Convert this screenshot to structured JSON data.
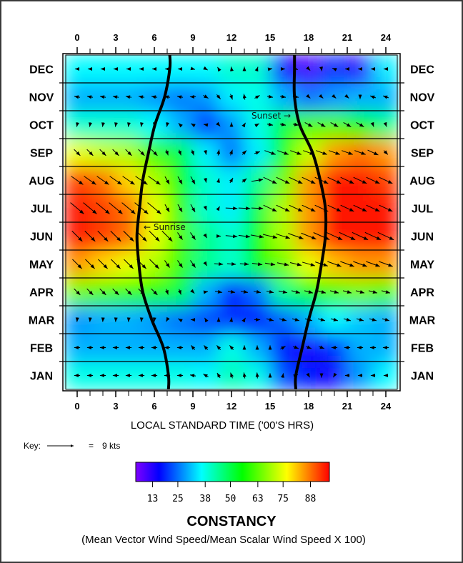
{
  "chart_data": {
    "type": "heatmap",
    "title": "",
    "xlabel": "LOCAL STANDARD TIME ('00'S HRS)",
    "x_ticks": [
      "0",
      "3",
      "6",
      "9",
      "12",
      "15",
      "18",
      "21",
      "24"
    ],
    "x_range": [
      -1,
      25
    ],
    "months": [
      "JAN",
      "FEB",
      "MAR",
      "APR",
      "MAY",
      "JUN",
      "JUL",
      "AUG",
      "SEP",
      "OCT",
      "NOV",
      "DEC"
    ],
    "grid_hours": [
      0,
      2,
      4,
      6,
      8,
      10,
      12,
      14,
      16,
      18,
      20,
      22,
      24
    ],
    "constancy": [
      [
        38,
        38,
        38,
        38,
        38,
        36,
        42,
        38,
        22,
        18,
        14,
        28,
        36
      ],
      [
        30,
        30,
        30,
        30,
        30,
        30,
        38,
        30,
        18,
        14,
        20,
        30,
        30
      ],
      [
        28,
        30,
        30,
        28,
        25,
        22,
        20,
        18,
        24,
        30,
        36,
        32,
        30
      ],
      [
        65,
        62,
        60,
        58,
        50,
        30,
        18,
        25,
        45,
        55,
        62,
        65,
        62
      ],
      [
        85,
        80,
        75,
        70,
        60,
        45,
        40,
        55,
        65,
        75,
        82,
        85,
        85
      ],
      [
        95,
        92,
        88,
        75,
        62,
        45,
        40,
        55,
        70,
        85,
        95,
        95,
        95
      ],
      [
        95,
        92,
        88,
        75,
        60,
        40,
        35,
        50,
        70,
        85,
        95,
        95,
        95
      ],
      [
        92,
        88,
        80,
        70,
        55,
        40,
        35,
        45,
        65,
        85,
        95,
        95,
        92
      ],
      [
        75,
        72,
        70,
        60,
        50,
        35,
        25,
        35,
        55,
        72,
        85,
        88,
        85
      ],
      [
        40,
        40,
        40,
        36,
        30,
        20,
        28,
        38,
        50,
        62,
        62,
        55,
        45
      ],
      [
        30,
        30,
        30,
        28,
        26,
        28,
        35,
        38,
        30,
        25,
        28,
        30,
        30
      ],
      [
        36,
        36,
        36,
        36,
        36,
        36,
        40,
        40,
        15,
        10,
        20,
        12,
        35
      ]
    ],
    "wind_hours": [
      0,
      1,
      2,
      3,
      4,
      5,
      6,
      7,
      8,
      9,
      10,
      11,
      12,
      13,
      14,
      15,
      16,
      17,
      18,
      19,
      20,
      21,
      22,
      23,
      24
    ],
    "wind_direction_deg": [
      [
        180,
        180,
        180,
        180,
        180,
        180,
        180,
        180,
        180,
        170,
        150,
        120,
        110,
        100,
        95,
        90,
        80,
        20,
        -60,
        -90,
        -120,
        180,
        180,
        180,
        180
      ],
      [
        180,
        180,
        180,
        180,
        180,
        180,
        180,
        180,
        180,
        130,
        130,
        130,
        130,
        90,
        90,
        90,
        30,
        -20,
        -20,
        -20,
        180,
        180,
        180,
        180,
        180
      ],
      [
        -95,
        -95,
        -95,
        -95,
        -95,
        -95,
        -95,
        -120,
        150,
        180,
        120,
        90,
        80,
        60,
        0,
        -15,
        -15,
        -15,
        -15,
        -15,
        -15,
        -15,
        -15,
        -15,
        -15
      ],
      [
        -45,
        -45,
        -45,
        -45,
        -45,
        -45,
        -45,
        -70,
        -70,
        -45,
        10,
        -10,
        -10,
        -10,
        -12,
        -12,
        -12,
        -15,
        -15,
        -15,
        -15,
        -15,
        -15,
        -15,
        -15
      ],
      [
        -45,
        -45,
        -45,
        -45,
        -45,
        -45,
        -45,
        -55,
        -55,
        -55,
        -60,
        -5,
        -5,
        -5,
        -8,
        -10,
        -12,
        -14,
        -16,
        -18,
        -20,
        -20,
        -20,
        -20,
        -20
      ],
      [
        -45,
        -45,
        -45,
        -45,
        -45,
        -45,
        -45,
        -45,
        -55,
        -55,
        -60,
        0,
        -5,
        -8,
        -10,
        -14,
        -18,
        -20,
        -22,
        -24,
        -25,
        -25,
        -25,
        -25,
        -25
      ],
      [
        -40,
        -40,
        -40,
        -40,
        -40,
        -40,
        -40,
        -60,
        -60,
        -60,
        -70,
        60,
        -3,
        -3,
        -3,
        -25,
        -25,
        -25,
        -25,
        -25,
        -25,
        -25,
        -25,
        -25,
        -25
      ],
      [
        -35,
        -35,
        -35,
        -35,
        -35,
        -35,
        -35,
        -60,
        -60,
        -60,
        -80,
        80,
        60,
        40,
        10,
        -25,
        -25,
        -25,
        -25,
        -25,
        -25,
        -25,
        -25,
        -25,
        -25
      ],
      [
        -45,
        -45,
        -45,
        -45,
        -45,
        -45,
        -45,
        -70,
        -70,
        -70,
        -80,
        80,
        70,
        45,
        20,
        -20,
        -20,
        -20,
        -20,
        -20,
        -20,
        -20,
        -20,
        -25,
        -45
      ],
      [
        -100,
        -100,
        -100,
        -100,
        -100,
        -100,
        -100,
        -100,
        135,
        150,
        170,
        -45,
        90,
        60,
        30,
        -10,
        -10,
        -10,
        -30,
        -30,
        -30,
        -30,
        -30,
        -70,
        -70
      ],
      [
        170,
        170,
        170,
        170,
        170,
        170,
        170,
        170,
        170,
        180,
        -30,
        -50,
        -70,
        100,
        30,
        -10,
        -10,
        -10,
        -40,
        -40,
        -40,
        -40,
        -90,
        160,
        160
      ],
      [
        180,
        180,
        180,
        180,
        180,
        180,
        180,
        180,
        180,
        -15,
        -30,
        120,
        100,
        90,
        70,
        10,
        0,
        -20,
        -45,
        -80,
        160,
        180,
        180,
        180,
        180
      ]
    ],
    "wind_speed_kts": [
      [
        2,
        2,
        2,
        2,
        2,
        2,
        2,
        2,
        2,
        2,
        2,
        2,
        2,
        2,
        2,
        1.5,
        1.5,
        1.5,
        1.5,
        1.5,
        1.5,
        1.5,
        1.5,
        1.5,
        1.5
      ],
      [
        2,
        2,
        2,
        2,
        2,
        2,
        2,
        2,
        2,
        2,
        2,
        2,
        2,
        1.5,
        1.5,
        1.5,
        2,
        2,
        2,
        2,
        2,
        2,
        2,
        2,
        2
      ],
      [
        1.5,
        1.5,
        1.5,
        1.5,
        1.5,
        1.5,
        1.5,
        1.5,
        1.5,
        1.5,
        1.5,
        1.5,
        1.5,
        1.5,
        2,
        2.5,
        2.5,
        2.5,
        2.5,
        2.5,
        2.5,
        2.5,
        2.5,
        2.5,
        2.5
      ],
      [
        3,
        3,
        3,
        3,
        3,
        3,
        3,
        2,
        2,
        1.5,
        1.5,
        2.5,
        2.5,
        2.5,
        2.5,
        2.5,
        3,
        3,
        3,
        3,
        3,
        3,
        3,
        3,
        3
      ],
      [
        4.5,
        4.5,
        4.5,
        4.5,
        4.5,
        4.5,
        4.5,
        3,
        3,
        3,
        1.5,
        3,
        3,
        3,
        3.5,
        3.5,
        4,
        4,
        4.5,
        4.5,
        5,
        5,
        5,
        5,
        5
      ],
      [
        5,
        5,
        5,
        5,
        5,
        5,
        5,
        5,
        3,
        3,
        1.5,
        1.5,
        4,
        4,
        4.5,
        5,
        5,
        5.5,
        5.5,
        6,
        6,
        6,
        6,
        6,
        6
      ],
      [
        6,
        6,
        6,
        6,
        6,
        6,
        6,
        3,
        3,
        3,
        1.5,
        1.5,
        4,
        4,
        4,
        5,
        5,
        5,
        5,
        5,
        5,
        5,
        5,
        5,
        5
      ],
      [
        5,
        5,
        5,
        5,
        5,
        5,
        5,
        3,
        3,
        3,
        1.5,
        1.5,
        2,
        2,
        4,
        5,
        5,
        5,
        5,
        5,
        5,
        5,
        5,
        5,
        5
      ],
      [
        3,
        3,
        3,
        3,
        3,
        3,
        3,
        2,
        2,
        2,
        1.5,
        2,
        2,
        2,
        2,
        4,
        4,
        4,
        4,
        4,
        4,
        4,
        4,
        4,
        2
      ],
      [
        1.5,
        1.5,
        1.5,
        1.5,
        1.5,
        1.5,
        1.5,
        1.5,
        1.5,
        1.5,
        1.5,
        1.5,
        1.5,
        1.5,
        1.5,
        2,
        2,
        2,
        3,
        3,
        3,
        3,
        3,
        1.5,
        1.5
      ],
      [
        2,
        2,
        2,
        2,
        2,
        2,
        2,
        2,
        2,
        2,
        2,
        2,
        2,
        2,
        2,
        2,
        2,
        2,
        1.5,
        1.5,
        1.5,
        1.5,
        1.5,
        2,
        2
      ],
      [
        1.5,
        1.5,
        1.5,
        1.5,
        1.5,
        1.5,
        1.5,
        1.5,
        1.5,
        1.5,
        1.5,
        1.5,
        1.5,
        1.5,
        1.5,
        1.5,
        1.5,
        1.5,
        1.5,
        1.5,
        1.5,
        1.5,
        1.5,
        1.5,
        1.5
      ]
    ],
    "sunrise_hour": [
      7.1,
      6.7,
      5.8,
      5.1,
      4.8,
      4.65,
      4.85,
      5.1,
      5.55,
      6.05,
      6.8,
      7.2
    ],
    "sunset_hour": [
      17.0,
      17.5,
      18.0,
      18.6,
      19.0,
      19.3,
      19.3,
      18.9,
      18.3,
      17.3,
      16.9,
      16.9
    ],
    "annotations": {
      "sunset": "Sunset →",
      "sunrise": "← Sunrise"
    },
    "key": {
      "label": "Key:",
      "equals": "=",
      "value": "9 kts",
      "kts": 9
    },
    "colorbar": {
      "ticks": [
        "13",
        "25",
        "38",
        "50",
        "63",
        "75",
        "88"
      ],
      "range": [
        5,
        97
      ],
      "colors": [
        "#8000ff",
        "#0000ff",
        "#00ffff",
        "#00ff00",
        "#ffff00",
        "#ff0000"
      ],
      "title": "CONSTANCY",
      "subtitle": "(Mean Vector Wind Speed/Mean Scalar Wind Speed X 100)"
    }
  }
}
